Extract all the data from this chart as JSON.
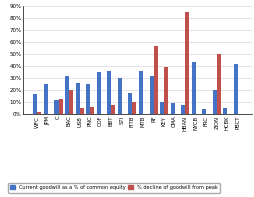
{
  "categories": [
    "WFC",
    "JPM",
    "C",
    "BAC",
    "USB",
    "PNC",
    "COF",
    "BBT",
    "STI",
    "FITB",
    "MTB",
    "RF",
    "KEY",
    "CMA",
    "HBAN",
    "NYCB",
    "FRC",
    "ZION",
    "HCBK",
    "PBCT"
  ],
  "goodwill_pct": [
    17,
    25,
    12,
    32,
    26,
    25,
    35,
    36,
    30,
    18,
    36,
    32,
    10,
    9,
    8,
    43,
    4,
    20,
    5,
    42
  ],
  "decline_pct": [
    2,
    0,
    13,
    20,
    5,
    6,
    0,
    8,
    0,
    10,
    0,
    57,
    39,
    0,
    85,
    0,
    0,
    50,
    0,
    0
  ],
  "bar_color_blue": "#4472c4",
  "bar_color_red": "#c0504d",
  "ylim_max": 90,
  "yticks": [
    0,
    10,
    20,
    30,
    40,
    50,
    60,
    70,
    80,
    90
  ],
  "legend_blue": "Current goodwill as a % of common equity",
  "legend_red": "% decline of goodwill from peak",
  "background_color": "#ffffff",
  "grid_color": "#d0d0d0",
  "bar_width": 0.38
}
